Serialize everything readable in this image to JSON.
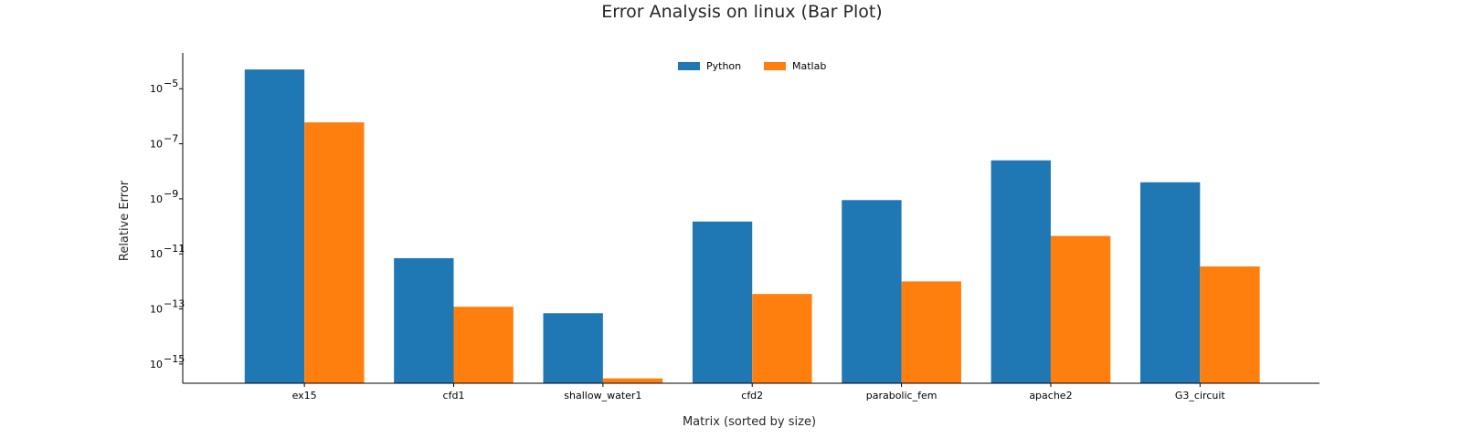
{
  "chart_data": {
    "type": "bar",
    "title": "Error Analysis on linux (Bar Plot)",
    "xlabel": "Matrix (sorted by size)",
    "ylabel": "Relative Error",
    "yscale": "log",
    "ylim": [
      2e-16,
      0.0002
    ],
    "yticks": [
      {
        "value": 1e-05,
        "base": "10",
        "exp": "−5"
      },
      {
        "value": 1e-07,
        "base": "10",
        "exp": "−7"
      },
      {
        "value": 1e-09,
        "base": "10",
        "exp": "−9"
      },
      {
        "value": 1e-11,
        "base": "10",
        "exp": "−11"
      },
      {
        "value": 1e-13,
        "base": "10",
        "exp": "−13"
      },
      {
        "value": 1e-15,
        "base": "10",
        "exp": "−15"
      }
    ],
    "categories": [
      "ex15",
      "cfd1",
      "shallow_water1",
      "cfd2",
      "parabolic_fem",
      "apache2",
      "G3_circuit"
    ],
    "series": [
      {
        "name": "Python",
        "color": "#1f77b4",
        "values": [
          5e-05,
          7e-12,
          7e-14,
          1.5e-10,
          9e-10,
          2.5e-08,
          4e-09
        ]
      },
      {
        "name": "Matlab",
        "color": "#ff7f0e",
        "values": [
          6e-07,
          1.2e-13,
          3e-16,
          3.5e-13,
          1e-12,
          4.5e-11,
          3.5e-12
        ]
      }
    ],
    "legend_position": "top-center",
    "grid": false,
    "spines": "left-bottom"
  }
}
